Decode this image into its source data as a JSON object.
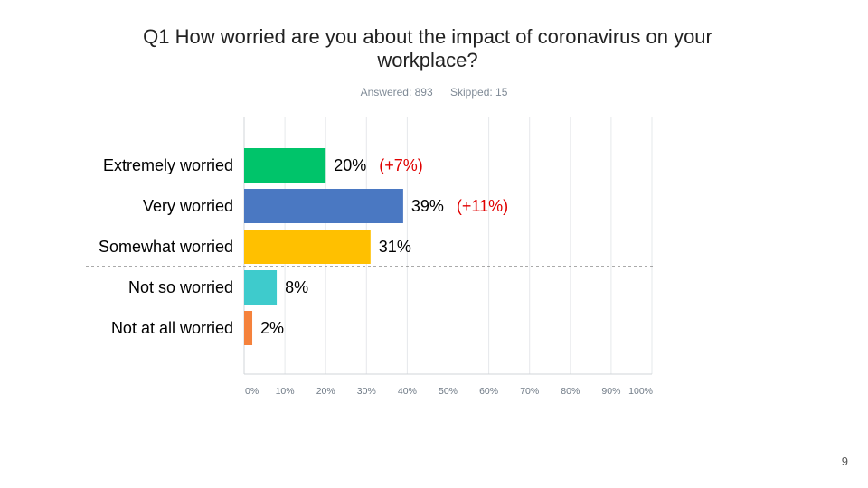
{
  "question_title": "Q1 How worried are you about the impact of coronavirus on your workplace?",
  "answered": "Answered: 893",
  "skipped": "Skipped: 15",
  "page_number": "9",
  "chart_data": {
    "type": "bar",
    "orientation": "horizontal",
    "categories": [
      "Extremely worried",
      "Very worried",
      "Somewhat worried",
      "Not so worried",
      "Not at all worried"
    ],
    "values": [
      20,
      39,
      31,
      8,
      2
    ],
    "value_labels": [
      "20%",
      "39%",
      "31%",
      "8%",
      "2%"
    ],
    "change_labels": [
      "(+7%)",
      "(+11%)",
      "",
      "",
      ""
    ],
    "colors": [
      "#00c46a",
      "#4a78c2",
      "#ffc000",
      "#3ecbcc",
      "#f5823c"
    ],
    "change_color": "#e00000",
    "xlim": [
      0,
      100
    ],
    "xticks": [
      "0%",
      "10%",
      "20%",
      "30%",
      "40%",
      "50%",
      "60%",
      "70%",
      "80%",
      "90%",
      "100%"
    ],
    "grid": true,
    "divider_after_category": 2
  }
}
